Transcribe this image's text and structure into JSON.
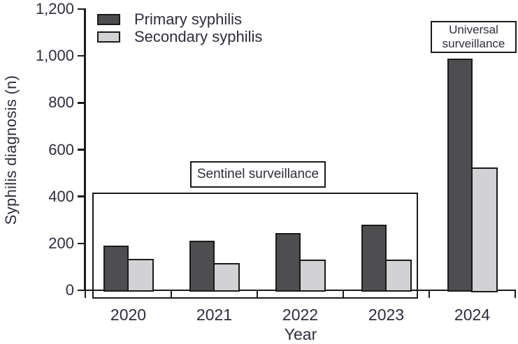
{
  "figure": {
    "ylabel": "Syphilis diagnosis (n)",
    "xlabel": "Year",
    "legend": {
      "primary_label": "Primary syphilis",
      "secondary_label": "Secondary syphilis"
    },
    "annotations": {
      "sentinel_label": "Sentinel surveillance",
      "universal_line1": "Universal",
      "universal_line2": "surveillance"
    },
    "colors": {
      "primary_bar": "#4e4e50",
      "secondary_bar": "#d2d2d4",
      "line": "#1a1a1a",
      "text": "#2e2e3a",
      "background": "#ffffff"
    }
  },
  "chart_data": {
    "type": "bar",
    "title": "",
    "categories": [
      "2020",
      "2021",
      "2022",
      "2023",
      "2024"
    ],
    "series": [
      {
        "name": "Primary syphilis",
        "color": "#4e4e50",
        "values": [
          190,
          210,
          245,
          280,
          990
        ]
      },
      {
        "name": "Secondary syphilis",
        "color": "#d2d2d4",
        "values": [
          135,
          115,
          130,
          130,
          525
        ]
      }
    ],
    "xlabel": "Year",
    "ylabel": "Syphilis diagnosis (n)",
    "ylim": [
      0,
      1200
    ],
    "yticks": [
      0,
      200,
      400,
      600,
      800,
      1000,
      1200
    ],
    "grid": false,
    "legend_position": "top-left",
    "annotations": [
      {
        "text": "Sentinel surveillance",
        "covers": [
          "2020",
          "2021",
          "2022",
          "2023"
        ]
      },
      {
        "text": "Universal surveillance",
        "covers": [
          "2024"
        ]
      }
    ]
  }
}
